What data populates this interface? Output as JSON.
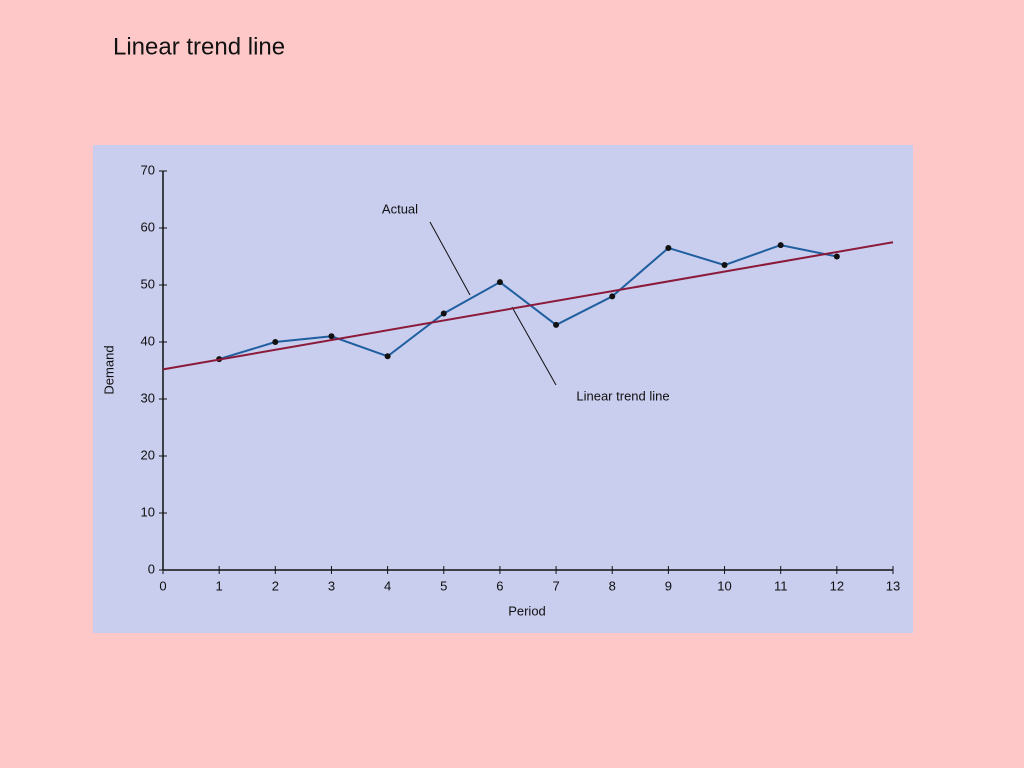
{
  "chart_data": {
    "type": "line",
    "title": "Linear trend line",
    "xlabel": "Period",
    "ylabel": "Demand",
    "annotations": [
      "Actual",
      "Linear trend line"
    ],
    "series": [
      {
        "name": "Actual",
        "color": "#1f5f9f",
        "x": [
          1,
          2,
          3,
          4,
          5,
          6,
          7,
          8,
          9,
          10,
          11,
          12
        ],
        "values": [
          37,
          40,
          41,
          37.5,
          45,
          50.5,
          43,
          48,
          56.5,
          53.5,
          57,
          55
        ]
      },
      {
        "name": "Linear trend line",
        "color": "#8b1a3a",
        "x": [
          0,
          13
        ],
        "values": [
          35.2,
          57.5
        ]
      }
    ],
    "xlim": [
      0,
      13
    ],
    "xticks": [
      0,
      1,
      2,
      3,
      4,
      5,
      6,
      7,
      8,
      9,
      10,
      11,
      12,
      13
    ],
    "ylim": [
      0,
      70
    ],
    "yticks": [
      0,
      10,
      20,
      30,
      40,
      50,
      60,
      70
    ]
  }
}
